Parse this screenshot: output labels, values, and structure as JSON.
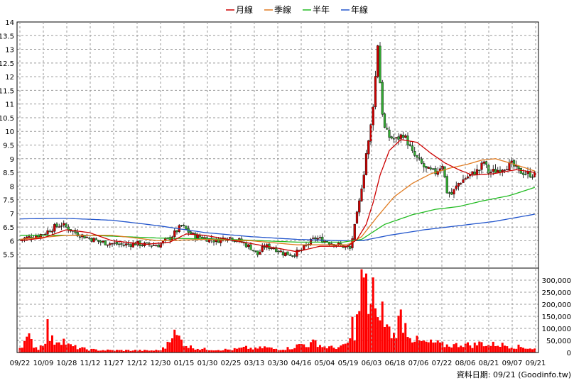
{
  "chart_data": {
    "type": "candlestick",
    "legend": [
      {
        "name": "月線",
        "color": "#cc0000"
      },
      {
        "name": "季線",
        "color": "#e07b20"
      },
      {
        "name": "半年",
        "color": "#22bb22"
      },
      {
        "name": "年線",
        "color": "#2255cc"
      }
    ],
    "legend_position": "top-center",
    "grid": true,
    "price_axis": {
      "ylim": [
        5,
        14
      ],
      "ticks": [
        "14",
        "13.5",
        "13",
        "12.5",
        "12",
        "11.5",
        "11",
        "10.5",
        "10",
        "9.5",
        "9",
        "8.5",
        "8",
        "7.5",
        "7",
        "6.5",
        "6",
        "5.5"
      ]
    },
    "volume_axis": {
      "ylim": [
        0,
        350000
      ],
      "ticks": [
        "300,000",
        "250,000",
        "200,000",
        "150,000",
        "100,000",
        "50,000",
        "0"
      ]
    },
    "x_ticks": [
      "09/22",
      "10/09",
      "10/28",
      "11/12",
      "11/27",
      "12/12",
      "12/30",
      "01/15",
      "01/30",
      "02/25",
      "03/13",
      "03/30",
      "04/16",
      "05/04",
      "05/19",
      "06/03",
      "06/18",
      "07/06",
      "07/22",
      "08/06",
      "08/21",
      "09/07",
      "09/21"
    ],
    "footer": "資料日期: 09/21 (Goodinfo.tw)",
    "colors": {
      "up": "#cc0000",
      "down": "#33aa33",
      "volume": "#ff0000"
    },
    "price_keyframes": [
      [
        0,
        6.05
      ],
      [
        5,
        6.15
      ],
      [
        10,
        6.25
      ],
      [
        15,
        6.5
      ],
      [
        18,
        6.6
      ],
      [
        20,
        6.5
      ],
      [
        25,
        6.25
      ],
      [
        30,
        6.1
      ],
      [
        35,
        5.95
      ],
      [
        40,
        5.9
      ],
      [
        45,
        5.85
      ],
      [
        50,
        5.9
      ],
      [
        55,
        5.85
      ],
      [
        60,
        5.85
      ],
      [
        65,
        6.1
      ],
      [
        70,
        6.55
      ],
      [
        72,
        6.4
      ],
      [
        75,
        6.2
      ],
      [
        80,
        6.1
      ],
      [
        85,
        6.0
      ],
      [
        90,
        6.15
      ],
      [
        95,
        6.0
      ],
      [
        100,
        5.75
      ],
      [
        103,
        5.5
      ],
      [
        106,
        5.8
      ],
      [
        110,
        5.75
      ],
      [
        114,
        5.55
      ],
      [
        118,
        5.5
      ],
      [
        122,
        5.65
      ],
      [
        125,
        5.9
      ],
      [
        128,
        6.1
      ],
      [
        132,
        6.0
      ],
      [
        136,
        5.9
      ],
      [
        140,
        5.8
      ],
      [
        143,
        5.7
      ],
      [
        145,
        6.5
      ],
      [
        147,
        7.4
      ],
      [
        148,
        8.0
      ],
      [
        149,
        8.5
      ],
      [
        150,
        9.2
      ],
      [
        151,
        9.6
      ],
      [
        152,
        10.2
      ],
      [
        153,
        11.0
      ],
      [
        154,
        12.0
      ],
      [
        155,
        13.2
      ],
      [
        156,
        11.8
      ],
      [
        157,
        10.7
      ],
      [
        158,
        10.1
      ],
      [
        160,
        9.8
      ],
      [
        163,
        9.7
      ],
      [
        166,
        9.9
      ],
      [
        168,
        9.6
      ],
      [
        170,
        9.2
      ],
      [
        173,
        8.9
      ],
      [
        176,
        8.6
      ],
      [
        180,
        8.5
      ],
      [
        183,
        8.8
      ],
      [
        185,
        7.8
      ],
      [
        187,
        7.7
      ],
      [
        190,
        8.1
      ],
      [
        193,
        8.3
      ],
      [
        196,
        8.45
      ],
      [
        199,
        8.6
      ],
      [
        201,
        8.9
      ],
      [
        203,
        8.5
      ],
      [
        206,
        8.55
      ],
      [
        210,
        8.7
      ],
      [
        213,
        8.8
      ],
      [
        216,
        8.55
      ],
      [
        220,
        8.45
      ],
      [
        223,
        8.4
      ]
    ],
    "volume_keyframes": [
      [
        0,
        20000
      ],
      [
        2,
        45000
      ],
      [
        4,
        60000
      ],
      [
        6,
        30000
      ],
      [
        8,
        15000
      ],
      [
        10,
        40000
      ],
      [
        11,
        55000
      ],
      [
        12,
        110000
      ],
      [
        13,
        60000
      ],
      [
        15,
        45000
      ],
      [
        17,
        55000
      ],
      [
        19,
        50000
      ],
      [
        21,
        30000
      ],
      [
        25,
        20000
      ],
      [
        30,
        12000
      ],
      [
        35,
        10000
      ],
      [
        40,
        9000
      ],
      [
        45,
        9000
      ],
      [
        50,
        9000
      ],
      [
        55,
        8000
      ],
      [
        60,
        9000
      ],
      [
        63,
        20000
      ],
      [
        65,
        70000
      ],
      [
        66,
        80000
      ],
      [
        67,
        75000
      ],
      [
        69,
        60000
      ],
      [
        71,
        40000
      ],
      [
        73,
        25000
      ],
      [
        78,
        15000
      ],
      [
        85,
        12000
      ],
      [
        92,
        12000
      ],
      [
        98,
        20000
      ],
      [
        102,
        15000
      ],
      [
        106,
        22000
      ],
      [
        110,
        15000
      ],
      [
        114,
        15000
      ],
      [
        118,
        20000
      ],
      [
        122,
        35000
      ],
      [
        125,
        30000
      ],
      [
        128,
        45000
      ],
      [
        131,
        25000
      ],
      [
        136,
        20000
      ],
      [
        140,
        25000
      ],
      [
        143,
        50000
      ],
      [
        144,
        120000
      ],
      [
        145,
        80000
      ],
      [
        146,
        130000
      ],
      [
        147,
        185000
      ],
      [
        148,
        350000
      ],
      [
        149,
        300000
      ],
      [
        150,
        250000
      ],
      [
        151,
        200000
      ],
      [
        152,
        210000
      ],
      [
        153,
        280000
      ],
      [
        154,
        150000
      ],
      [
        155,
        110000
      ],
      [
        156,
        200000
      ],
      [
        157,
        170000
      ],
      [
        158,
        120000
      ],
      [
        160,
        90000
      ],
      [
        162,
        70000
      ],
      [
        165,
        150000
      ],
      [
        167,
        110000
      ],
      [
        170,
        60000
      ],
      [
        173,
        45000
      ],
      [
        176,
        40000
      ],
      [
        180,
        40000
      ],
      [
        184,
        30000
      ],
      [
        188,
        30000
      ],
      [
        192,
        35000
      ],
      [
        196,
        30000
      ],
      [
        200,
        40000
      ],
      [
        203,
        30000
      ],
      [
        206,
        35000
      ],
      [
        210,
        30000
      ],
      [
        214,
        25000
      ],
      [
        218,
        22000
      ],
      [
        223,
        15000
      ]
    ],
    "ma_month": [
      [
        0,
        6.0
      ],
      [
        10,
        6.1
      ],
      [
        20,
        6.4
      ],
      [
        30,
        6.3
      ],
      [
        40,
        6.0
      ],
      [
        55,
        5.87
      ],
      [
        65,
        5.95
      ],
      [
        72,
        6.25
      ],
      [
        80,
        6.2
      ],
      [
        90,
        6.05
      ],
      [
        100,
        5.9
      ],
      [
        110,
        5.75
      ],
      [
        120,
        5.6
      ],
      [
        130,
        5.8
      ],
      [
        142,
        5.8
      ],
      [
        146,
        6.05
      ],
      [
        150,
        6.6
      ],
      [
        153,
        7.4
      ],
      [
        156,
        8.4
      ],
      [
        160,
        9.3
      ],
      [
        165,
        9.7
      ],
      [
        172,
        9.6
      ],
      [
        178,
        9.2
      ],
      [
        184,
        8.85
      ],
      [
        190,
        8.6
      ],
      [
        196,
        8.4
      ],
      [
        205,
        8.45
      ],
      [
        215,
        8.6
      ],
      [
        223,
        8.5
      ]
    ],
    "ma_quarter": [
      [
        0,
        6.05
      ],
      [
        20,
        6.2
      ],
      [
        40,
        6.2
      ],
      [
        60,
        6.0
      ],
      [
        80,
        6.05
      ],
      [
        100,
        6.0
      ],
      [
        120,
        5.85
      ],
      [
        142,
        5.85
      ],
      [
        148,
        6.15
      ],
      [
        155,
        6.9
      ],
      [
        162,
        7.6
      ],
      [
        170,
        8.1
      ],
      [
        178,
        8.45
      ],
      [
        186,
        8.65
      ],
      [
        194,
        8.8
      ],
      [
        200,
        8.95
      ],
      [
        206,
        9.0
      ],
      [
        214,
        8.8
      ],
      [
        223,
        8.55
      ]
    ],
    "ma_half": [
      [
        0,
        6.2
      ],
      [
        30,
        6.2
      ],
      [
        60,
        6.1
      ],
      [
        90,
        6.05
      ],
      [
        120,
        5.95
      ],
      [
        140,
        5.95
      ],
      [
        148,
        6.05
      ],
      [
        158,
        6.6
      ],
      [
        170,
        6.95
      ],
      [
        180,
        7.15
      ],
      [
        190,
        7.25
      ],
      [
        200,
        7.45
      ],
      [
        212,
        7.65
      ],
      [
        223,
        7.95
      ]
    ],
    "ma_year": [
      [
        0,
        6.8
      ],
      [
        20,
        6.82
      ],
      [
        40,
        6.75
      ],
      [
        60,
        6.55
      ],
      [
        80,
        6.3
      ],
      [
        100,
        6.15
      ],
      [
        120,
        6.05
      ],
      [
        140,
        6.0
      ],
      [
        148,
        6.0
      ],
      [
        160,
        6.2
      ],
      [
        175,
        6.4
      ],
      [
        190,
        6.55
      ],
      [
        205,
        6.7
      ],
      [
        223,
        6.97
      ]
    ]
  }
}
